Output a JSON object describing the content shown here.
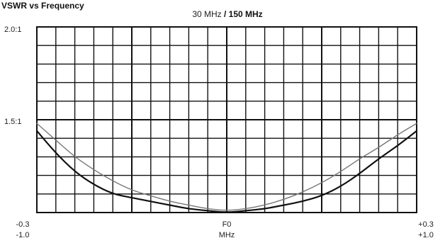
{
  "header_text": "VSWR vs Frequency",
  "chart_data": {
    "type": "line",
    "title_parts": [
      "30 MHz",
      " / 150 MHz"
    ],
    "xlabel": "MHz",
    "x_center_label": "F0",
    "x_left_labels": [
      "-0.3",
      "-1.0"
    ],
    "x_right_labels": [
      "+0.3",
      "+1.0"
    ],
    "xlim": [
      -1.0,
      1.0
    ],
    "ylim": [
      1.0,
      2.0
    ],
    "y_tick_labels": [
      "2.0:1",
      "1.5:1"
    ],
    "y_tick_values": [
      2.0,
      1.5
    ],
    "grid": true,
    "series": [
      {
        "color": "#111111",
        "x": [
          -1.0,
          -0.9,
          -0.8,
          -0.7,
          -0.6,
          -0.5,
          -0.4,
          -0.3,
          -0.2,
          -0.1,
          0.0,
          0.1,
          0.2,
          0.3,
          0.4,
          0.5,
          0.6,
          0.7,
          0.8,
          0.9,
          1.0
        ],
        "y": [
          1.44,
          1.32,
          1.22,
          1.15,
          1.1,
          1.08,
          1.06,
          1.04,
          1.02,
          1.01,
          1.0,
          1.01,
          1.02,
          1.04,
          1.06,
          1.09,
          1.14,
          1.21,
          1.29,
          1.36,
          1.44
        ]
      },
      {
        "color": "#777777",
        "x": [
          -1.0,
          -0.9,
          -0.8,
          -0.7,
          -0.6,
          -0.5,
          -0.4,
          -0.3,
          -0.2,
          -0.1,
          0.0,
          0.1,
          0.2,
          0.3,
          0.4,
          0.5,
          0.6,
          0.7,
          0.8,
          0.9,
          1.0
        ],
        "y": [
          1.48,
          1.39,
          1.3,
          1.23,
          1.17,
          1.12,
          1.09,
          1.06,
          1.04,
          1.02,
          1.01,
          1.02,
          1.04,
          1.07,
          1.11,
          1.16,
          1.22,
          1.29,
          1.35,
          1.42,
          1.48
        ]
      }
    ]
  }
}
